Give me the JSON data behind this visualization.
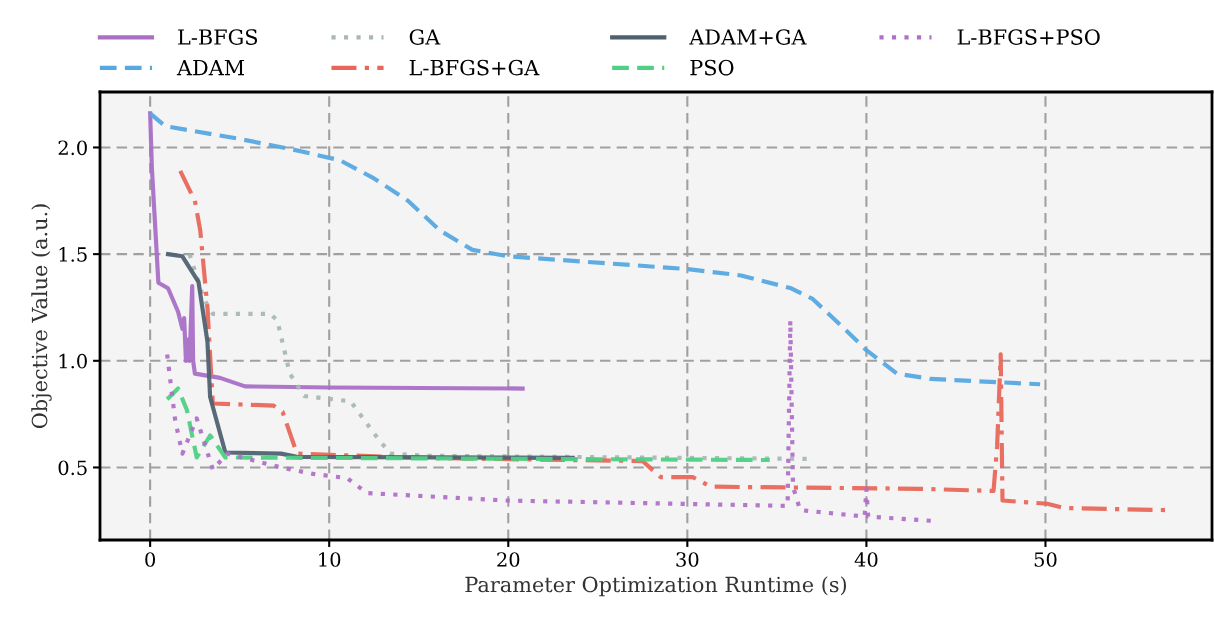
{
  "chart_data": {
    "type": "line",
    "xlabel": "Parameter Optimization Runtime (s)",
    "ylabel": "Objective Value (a.u.)",
    "xlim": [
      -2.8,
      59.3
    ],
    "ylim": [
      0.16,
      2.26
    ],
    "xticks": [
      0,
      10,
      20,
      30,
      40,
      50
    ],
    "yticks": [
      {
        "value": 0.5,
        "label": "0.5"
      },
      {
        "value": 1.0,
        "label": "1.0"
      },
      {
        "value": 1.5,
        "label": "1.5"
      },
      {
        "value": 2.0,
        "label": "2.0"
      }
    ],
    "grid": true,
    "legend": "top",
    "series": [
      {
        "name": "L-BFGS",
        "color": "#a970c6",
        "line_style": "solid",
        "x": [
          0,
          0.1,
          0.46,
          1.0,
          1.56,
          1.8,
          1.9,
          2.0,
          2.1,
          2.2,
          2.35,
          2.4,
          2.5,
          3.9,
          5.3,
          10,
          20.8
        ],
        "values": [
          2.16,
          1.9,
          1.366,
          1.34,
          1.23,
          1.15,
          1.2,
          1.0,
          1.1,
          1.0,
          1.35,
          1.0,
          0.94,
          0.92,
          0.88,
          0.875,
          0.87
        ]
      },
      {
        "name": "ADAM",
        "color": "#56a8e0",
        "line_style": "dashed",
        "x": [
          0,
          0.84,
          5,
          8,
          10.6,
          12.5,
          14.4,
          16.2,
          18.0,
          20,
          30,
          33,
          35.8,
          37,
          38.9,
          40,
          41.7,
          43.6,
          49.7
        ],
        "values": [
          2.16,
          2.1,
          2.04,
          1.99,
          1.94,
          1.855,
          1.75,
          1.61,
          1.52,
          1.49,
          1.43,
          1.4,
          1.34,
          1.29,
          1.14,
          1.05,
          0.94,
          0.915,
          0.89
        ]
      },
      {
        "name": "GA",
        "color": "#a8b8b4",
        "line_style": "dotted",
        "x": [
          2.2,
          3.0,
          3.5,
          6.7,
          7.1,
          7.8,
          8.6,
          11.2,
          12.5,
          13.4,
          15.3,
          36.9
        ],
        "values": [
          1.5,
          1.29,
          1.22,
          1.22,
          1.19,
          0.94,
          0.835,
          0.81,
          0.66,
          0.565,
          0.555,
          0.54
        ]
      },
      {
        "name": "L-BFGS+GA",
        "color": "#e8675a",
        "line_style": "dashdot",
        "x": [
          1.68,
          2.5,
          2.8,
          3.2,
          3.5,
          6.9,
          7.4,
          8.2,
          15,
          27.5,
          28.5,
          30.3,
          31.3,
          43,
          47.1,
          47.3,
          47.5,
          47.6,
          50.1,
          51,
          56.8
        ],
        "values": [
          1.89,
          1.75,
          1.61,
          1.25,
          0.8,
          0.79,
          0.76,
          0.565,
          0.545,
          0.53,
          0.455,
          0.455,
          0.41,
          0.4,
          0.39,
          0.6,
          1.03,
          0.345,
          0.33,
          0.31,
          0.3
        ]
      },
      {
        "name": "ADAM+GA",
        "color": "#4f6170",
        "line_style": "solid",
        "x": [
          1.0,
          1.8,
          2.7,
          3.2,
          3.35,
          4.2,
          7.3,
          8.2,
          23.6
        ],
        "values": [
          1.5,
          1.49,
          1.37,
          1.09,
          0.83,
          0.57,
          0.565,
          0.55,
          0.545
        ]
      },
      {
        "name": "PSO",
        "color": "#4fd085",
        "line_style": "dashed",
        "x": [
          0.95,
          1.56,
          2.05,
          2.6,
          3.35,
          4.2,
          34.6
        ],
        "values": [
          0.82,
          0.87,
          0.77,
          0.547,
          0.65,
          0.547,
          0.535
        ]
      },
      {
        "name": "L-BFGS+PSO",
        "color": "#b070c8",
        "line_style": "dotted",
        "x": [
          0.95,
          1.4,
          1.8,
          2.6,
          3.5,
          4.3,
          7.3,
          9.1,
          11,
          12.1,
          19.9,
          35.6,
          35.75,
          35.9,
          36.3,
          39.9,
          40,
          40.1,
          43.6
        ],
        "values": [
          1.03,
          0.72,
          0.565,
          0.73,
          0.49,
          0.565,
          0.5,
          0.47,
          0.45,
          0.38,
          0.345,
          0.32,
          1.19,
          0.41,
          0.3,
          0.27,
          0.4,
          0.27,
          0.25
        ]
      }
    ]
  }
}
